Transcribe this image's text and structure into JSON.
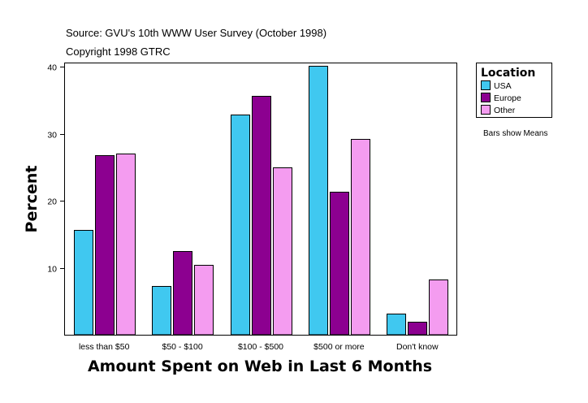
{
  "header": {
    "source": "Source: GVU's 10th WWW User Survey (October 1998)",
    "copyright": "Copyright 1998 GTRC"
  },
  "legend": {
    "title": "Location",
    "note": "Bars show Means"
  },
  "chart_data": {
    "type": "bar",
    "title": "",
    "xlabel": "Amount Spent on Web in Last 6 Months",
    "ylabel": "Percent",
    "categories": [
      "less than $50",
      "$50 - $100",
      "$100 - $500",
      "$500 or more",
      "Don't know"
    ],
    "series": [
      {
        "name": "USA",
        "color": "#40c8f0",
        "values": [
          15.6,
          7.3,
          32.9,
          40.1,
          3.2
        ]
      },
      {
        "name": "Europe",
        "color": "#8c0090",
        "values": [
          26.8,
          12.5,
          35.6,
          21.4,
          1.9
        ]
      },
      {
        "name": "Other",
        "color": "#f49cf0",
        "values": [
          27.1,
          10.4,
          25.0,
          29.2,
          8.3
        ]
      }
    ],
    "ylim": [
      0,
      40.5
    ],
    "yticks": [
      10,
      20,
      30,
      40
    ],
    "grid": false,
    "legend_position": "top-right"
  }
}
